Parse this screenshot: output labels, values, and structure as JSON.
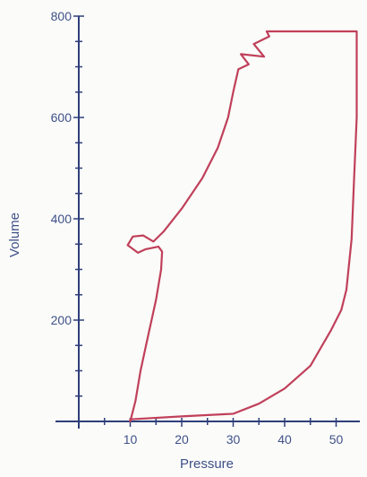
{
  "chart_data": {
    "type": "line",
    "title": "",
    "xlabel": "Pressure",
    "ylabel": "Volume",
    "xlim": [
      -10,
      55
    ],
    "ylim": [
      0,
      800
    ],
    "xticks": [
      10,
      20,
      30,
      40,
      50
    ],
    "yticks": [
      200,
      400,
      600,
      800
    ],
    "grid": false,
    "legend": "none",
    "colors": {
      "axis": "#2e3f7a",
      "text": "#3e5188",
      "curve": "#c0405a"
    },
    "series": [
      {
        "points": [
          [
            10,
            0
          ],
          [
            11,
            40
          ],
          [
            12,
            100
          ],
          [
            13.5,
            170
          ],
          [
            15,
            240
          ],
          [
            16,
            300
          ],
          [
            16.2,
            335
          ],
          [
            15.5,
            345
          ],
          [
            13,
            340
          ],
          [
            11.5,
            333
          ],
          [
            9.5,
            348
          ],
          [
            10.5,
            365
          ],
          [
            12.5,
            367
          ],
          [
            14.5,
            355
          ],
          [
            16.5,
            375
          ],
          [
            20,
            420
          ],
          [
            24,
            480
          ],
          [
            27,
            540
          ],
          [
            29,
            600
          ],
          [
            30,
            650
          ],
          [
            31,
            695
          ],
          [
            33,
            705
          ],
          [
            31.5,
            725
          ],
          [
            36,
            720
          ],
          [
            34,
            745
          ],
          [
            37,
            760
          ],
          [
            36.5,
            770
          ],
          [
            40,
            770
          ],
          [
            45,
            770
          ],
          [
            50,
            770
          ],
          [
            54,
            770
          ],
          [
            54,
            700
          ],
          [
            54,
            600
          ],
          [
            53.5,
            480
          ],
          [
            53,
            360
          ],
          [
            52,
            260
          ],
          [
            51,
            220
          ],
          [
            49,
            180
          ],
          [
            45,
            110
          ],
          [
            40,
            65
          ],
          [
            35,
            35
          ],
          [
            30,
            15
          ],
          [
            20,
            10
          ],
          [
            10,
            4
          ],
          [
            10,
            0
          ]
        ]
      }
    ]
  }
}
